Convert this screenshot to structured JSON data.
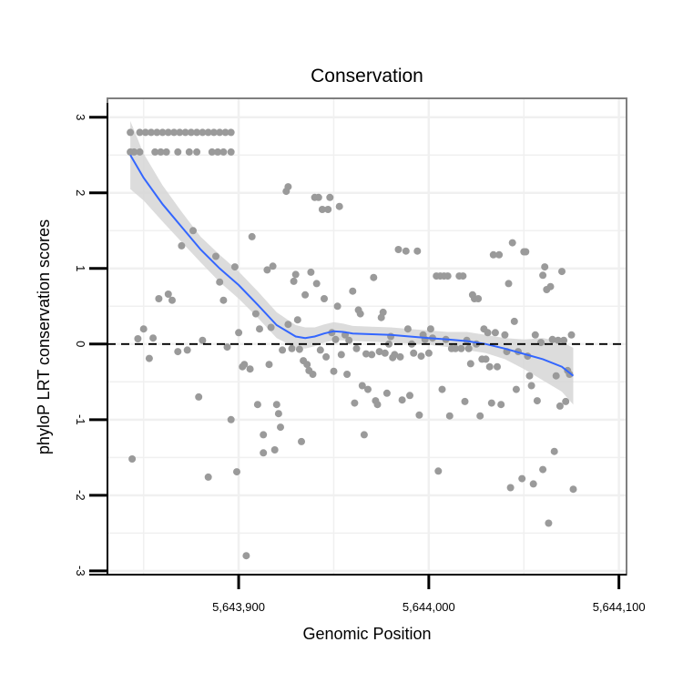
{
  "chart_data": {
    "type": "scatter",
    "title": "Conservation",
    "xlabel": "Genomic Position",
    "ylabel": "phyloP LRT conservation scores",
    "xlim": [
      5643831,
      5644104
    ],
    "ylim": [
      -3.05,
      3.25
    ],
    "x_ticks": [
      5643900,
      5644000,
      5644100
    ],
    "x_tick_labels": [
      "5,643,900",
      "5,644,000",
      "5,644,100"
    ],
    "y_ticks": [
      3,
      2,
      1,
      0,
      -1,
      -2,
      -3
    ],
    "y_tick_labels": [
      "3",
      "2",
      "1",
      "0",
      "-1",
      "-2",
      "-3"
    ],
    "reference_line": {
      "y": 0,
      "style": "dashed"
    },
    "colors": {
      "points": "#9a9a9a",
      "smooth": "#3366ff",
      "ribbon": "#d6d6d6",
      "grid": "#f0f0f0",
      "border": "#7f7f7f"
    },
    "points": [
      [
        5643843,
        2.8
      ],
      [
        5643848,
        2.8
      ],
      [
        5643851,
        2.8
      ],
      [
        5643854,
        2.8
      ],
      [
        5643857,
        2.8
      ],
      [
        5643860,
        2.8
      ],
      [
        5643863,
        2.8
      ],
      [
        5643866,
        2.8
      ],
      [
        5643869,
        2.8
      ],
      [
        5643872,
        2.8
      ],
      [
        5643875,
        2.8
      ],
      [
        5643878,
        2.8
      ],
      [
        5643881,
        2.8
      ],
      [
        5643884,
        2.8
      ],
      [
        5643887,
        2.8
      ],
      [
        5643890,
        2.8
      ],
      [
        5643893,
        2.8
      ],
      [
        5643896,
        2.8
      ],
      [
        5643843,
        2.54
      ],
      [
        5643845,
        2.54
      ],
      [
        5643848,
        2.54
      ],
      [
        5643856,
        2.54
      ],
      [
        5643859,
        2.54
      ],
      [
        5643862,
        2.54
      ],
      [
        5643868,
        2.54
      ],
      [
        5643874,
        2.54
      ],
      [
        5643878,
        2.54
      ],
      [
        5643886,
        2.54
      ],
      [
        5643889,
        2.54
      ],
      [
        5643892,
        2.54
      ],
      [
        5643896,
        2.54
      ],
      [
        5643844,
        -1.52
      ],
      [
        5643847,
        0.07
      ],
      [
        5643850,
        0.2
      ],
      [
        5643853,
        -0.19
      ],
      [
        5643855,
        0.08
      ],
      [
        5643858,
        0.6
      ],
      [
        5643863,
        0.66
      ],
      [
        5643865,
        0.58
      ],
      [
        5643868,
        -0.1
      ],
      [
        5643870,
        1.3
      ],
      [
        5643873,
        -0.08
      ],
      [
        5643876,
        1.5
      ],
      [
        5643879,
        -0.7
      ],
      [
        5643881,
        0.05
      ],
      [
        5643884,
        -1.76
      ],
      [
        5643888,
        1.16
      ],
      [
        5643890,
        0.82
      ],
      [
        5643892,
        0.58
      ],
      [
        5643894,
        -0.04
      ],
      [
        5643896,
        -1.0
      ],
      [
        5643898,
        1.02
      ],
      [
        5643899,
        -1.69
      ],
      [
        5643900,
        0.15
      ],
      [
        5643902,
        -0.3
      ],
      [
        5643903,
        -0.27
      ],
      [
        5643904,
        -2.8
      ],
      [
        5643906,
        -0.33
      ],
      [
        5643907,
        1.42
      ],
      [
        5643909,
        0.4
      ],
      [
        5643910,
        -0.8
      ],
      [
        5643911,
        0.2
      ],
      [
        5643913,
        -1.44
      ],
      [
        5643913,
        -1.2
      ],
      [
        5643915,
        0.98
      ],
      [
        5643916,
        -0.27
      ],
      [
        5643917,
        0.22
      ],
      [
        5643918,
        1.03
      ],
      [
        5643919,
        -1.4
      ],
      [
        5643920,
        -0.8
      ],
      [
        5643921,
        -0.92
      ],
      [
        5643922,
        -1.1
      ],
      [
        5643923,
        -0.08
      ],
      [
        5643925,
        2.02
      ],
      [
        5643926,
        2.08
      ],
      [
        5643926,
        0.26
      ],
      [
        5643928,
        -0.06
      ],
      [
        5643929,
        0.83
      ],
      [
        5643930,
        0.92
      ],
      [
        5643931,
        0.32
      ],
      [
        5643932,
        -0.07
      ],
      [
        5643933,
        -1.29
      ],
      [
        5643934,
        -0.22
      ],
      [
        5643935,
        0.65
      ],
      [
        5643936,
        -0.27
      ],
      [
        5643937,
        -0.35
      ],
      [
        5643938,
        0.95
      ],
      [
        5643939,
        -0.4
      ],
      [
        5643940,
        1.94
      ],
      [
        5643941,
        0.8
      ],
      [
        5643942,
        1.94
      ],
      [
        5643943,
        -0.08
      ],
      [
        5643944,
        1.78
      ],
      [
        5643945,
        0.6
      ],
      [
        5643946,
        -0.17
      ],
      [
        5643947,
        1.78
      ],
      [
        5643948,
        1.94
      ],
      [
        5643949,
        0.15
      ],
      [
        5643950,
        -0.36
      ],
      [
        5643951,
        0.06
      ],
      [
        5643952,
        0.5
      ],
      [
        5643953,
        1.82
      ],
      [
        5643954,
        -0.14
      ],
      [
        5643956,
        0.12
      ],
      [
        5643957,
        -0.4
      ],
      [
        5643958,
        0.05
      ],
      [
        5643960,
        0.7
      ],
      [
        5643961,
        -0.78
      ],
      [
        5643962,
        -0.06
      ],
      [
        5643963,
        0.45
      ],
      [
        5643964,
        0.4
      ],
      [
        5643965,
        -0.55
      ],
      [
        5643966,
        -1.2
      ],
      [
        5643967,
        -0.13
      ],
      [
        5643968,
        -0.6
      ],
      [
        5643970,
        -0.14
      ],
      [
        5643971,
        0.88
      ],
      [
        5643972,
        -0.75
      ],
      [
        5643973,
        -0.8
      ],
      [
        5643974,
        -0.1
      ],
      [
        5643975,
        0.35
      ],
      [
        5643976,
        0.42
      ],
      [
        5643977,
        -0.12
      ],
      [
        5643978,
        -0.65
      ],
      [
        5643979,
        0.0
      ],
      [
        5643980,
        0.1
      ],
      [
        5643981,
        -0.18
      ],
      [
        5643982,
        -0.14
      ],
      [
        5643984,
        1.25
      ],
      [
        5643985,
        -0.17
      ],
      [
        5643986,
        -0.74
      ],
      [
        5643988,
        1.23
      ],
      [
        5643989,
        0.2
      ],
      [
        5643990,
        -0.68
      ],
      [
        5643991,
        0.0
      ],
      [
        5643992,
        -0.12
      ],
      [
        5643994,
        1.23
      ],
      [
        5643995,
        -0.94
      ],
      [
        5643996,
        -0.16
      ],
      [
        5643997,
        0.12
      ],
      [
        5643998,
        0.06
      ],
      [
        5644000,
        -0.12
      ],
      [
        5644001,
        0.2
      ],
      [
        5644002,
        0.08
      ],
      [
        5644004,
        0.9
      ],
      [
        5644005,
        -1.68
      ],
      [
        5644006,
        0.9
      ],
      [
        5644007,
        -0.6
      ],
      [
        5644008,
        0.9
      ],
      [
        5644009,
        0.06
      ],
      [
        5644010,
        0.9
      ],
      [
        5644011,
        -0.95
      ],
      [
        5644012,
        -0.06
      ],
      [
        5644014,
        -0.06
      ],
      [
        5644016,
        0.9
      ],
      [
        5644017,
        -0.06
      ],
      [
        5644018,
        0.9
      ],
      [
        5644019,
        -0.76
      ],
      [
        5644020,
        0.05
      ],
      [
        5644021,
        -0.06
      ],
      [
        5644022,
        -0.26
      ],
      [
        5644023,
        0.65
      ],
      [
        5644024,
        0.6
      ],
      [
        5644025,
        0.0
      ],
      [
        5644026,
        0.6
      ],
      [
        5644027,
        -0.95
      ],
      [
        5644028,
        -0.2
      ],
      [
        5644029,
        0.2
      ],
      [
        5644030,
        -0.2
      ],
      [
        5644031,
        0.15
      ],
      [
        5644032,
        -0.3
      ],
      [
        5644033,
        -0.78
      ],
      [
        5644034,
        1.18
      ],
      [
        5644035,
        0.15
      ],
      [
        5644036,
        -0.3
      ],
      [
        5644037,
        1.18
      ],
      [
        5644038,
        -0.8
      ],
      [
        5644040,
        0.12
      ],
      [
        5644041,
        -0.1
      ],
      [
        5644042,
        0.8
      ],
      [
        5644043,
        -1.9
      ],
      [
        5644044,
        1.34
      ],
      [
        5644045,
        0.3
      ],
      [
        5644046,
        -0.6
      ],
      [
        5644047,
        -0.1
      ],
      [
        5644049,
        -1.78
      ],
      [
        5644050,
        1.22
      ],
      [
        5644051,
        1.22
      ],
      [
        5644052,
        -0.16
      ],
      [
        5644053,
        -0.42
      ],
      [
        5644054,
        -0.55
      ],
      [
        5644055,
        -1.85
      ],
      [
        5644056,
        0.12
      ],
      [
        5644057,
        -0.75
      ],
      [
        5644059,
        0.02
      ],
      [
        5644060,
        0.91
      ],
      [
        5644060,
        -1.66
      ],
      [
        5644061,
        1.02
      ],
      [
        5644062,
        0.72
      ],
      [
        5644063,
        -2.37
      ],
      [
        5644064,
        0.76
      ],
      [
        5644065,
        0.06
      ],
      [
        5644066,
        -1.42
      ],
      [
        5644067,
        -0.42
      ],
      [
        5644068,
        0.05
      ],
      [
        5644069,
        -0.82
      ],
      [
        5644070,
        0.96
      ],
      [
        5644071,
        0.05
      ],
      [
        5644072,
        -0.76
      ],
      [
        5644073,
        -0.35
      ],
      [
        5644074,
        -0.4
      ],
      [
        5644075,
        0.12
      ],
      [
        5644076,
        -1.92
      ]
    ],
    "smooth_line": {
      "x": [
        5643843,
        5643850,
        5643860,
        5643870,
        5643880,
        5643890,
        5643900,
        5643910,
        5643920,
        5643930,
        5643935,
        5643940,
        5643945,
        5643950,
        5643955,
        5643960,
        5643970,
        5643980,
        5643990,
        5644000,
        5644010,
        5644020,
        5644030,
        5644040,
        5644050,
        5644060,
        5644070,
        5644076
      ],
      "y": [
        2.5,
        2.2,
        1.85,
        1.55,
        1.25,
        1.0,
        0.78,
        0.52,
        0.25,
        0.1,
        0.08,
        0.1,
        0.14,
        0.17,
        0.16,
        0.14,
        0.13,
        0.12,
        0.1,
        0.08,
        0.06,
        0.04,
        0.0,
        -0.06,
        -0.13,
        -0.2,
        -0.3,
        -0.42
      ],
      "lower": [
        2.05,
        1.9,
        1.62,
        1.35,
        1.08,
        0.82,
        0.6,
        0.35,
        0.08,
        -0.05,
        -0.06,
        -0.03,
        0.02,
        0.05,
        0.05,
        0.04,
        0.03,
        0.02,
        0.01,
        -0.01,
        -0.04,
        -0.08,
        -0.12,
        -0.2,
        -0.33,
        -0.48,
        -0.63,
        -0.8
      ],
      "upper": [
        2.95,
        2.52,
        2.1,
        1.75,
        1.42,
        1.18,
        0.96,
        0.7,
        0.42,
        0.25,
        0.22,
        0.22,
        0.26,
        0.29,
        0.27,
        0.24,
        0.23,
        0.22,
        0.2,
        0.18,
        0.16,
        0.16,
        0.12,
        0.08,
        0.06,
        0.08,
        0.03,
        -0.05
      ]
    }
  }
}
